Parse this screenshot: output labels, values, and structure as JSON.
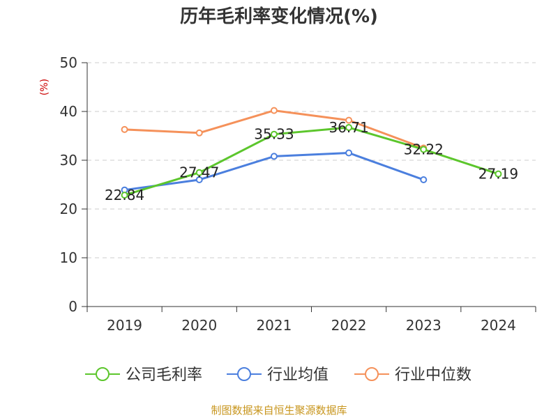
{
  "chart_data": {
    "type": "line",
    "title": "历年毛利率变化情况(%)",
    "ylabel": "(%)",
    "categories": [
      "2019",
      "2020",
      "2021",
      "2022",
      "2023",
      "2024"
    ],
    "ylim": [
      0,
      50
    ],
    "yticks": [
      0,
      10,
      20,
      30,
      40,
      50
    ],
    "grid": true,
    "legend_position": "bottom",
    "series": [
      {
        "name": "公司毛利率",
        "color": "#5cc62c",
        "values": [
          22.84,
          27.47,
          35.33,
          36.71,
          32.22,
          27.19
        ],
        "labels": [
          "22.84",
          "27.47",
          "35.33",
          "36.71",
          "32.22",
          "27.19"
        ]
      },
      {
        "name": "行业均值",
        "color": "#4b7fde",
        "values": [
          23.9,
          26.0,
          30.8,
          31.5,
          26.0,
          null
        ]
      },
      {
        "name": "行业中位数",
        "color": "#f5915a",
        "values": [
          36.3,
          35.6,
          40.2,
          38.2,
          32.5,
          null
        ]
      }
    ]
  },
  "source": "制图数据来自恒生聚源数据库"
}
